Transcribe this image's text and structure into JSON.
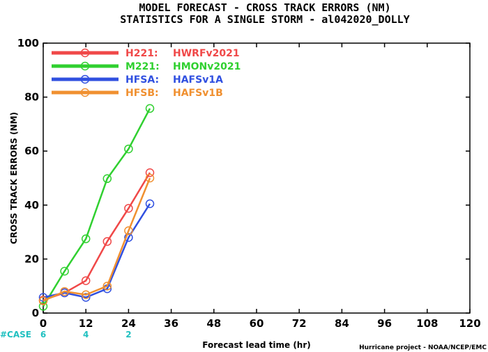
{
  "title_line1": "MODEL FORECAST - CROSS TRACK ERRORS (NM)",
  "title_line2": "STATISTICS FOR A SINGLE STORM - al042020_DOLLY",
  "credit": "Hurricane project - NOAA/NCEP/EMC",
  "case_label": "#CASE",
  "case_color": "#20c0c0",
  "chart_data": {
    "type": "line",
    "xlabel": "Forecast lead time (hr)",
    "ylabel": "CROSS TRACK ERRORS (NM)",
    "xlim": [
      0,
      120
    ],
    "ylim": [
      0,
      100
    ],
    "x_ticks": [
      "0",
      "12",
      "24",
      "36",
      "48",
      "60",
      "72",
      "84",
      "96",
      "108",
      "120"
    ],
    "y_ticks": [
      "0",
      "20",
      "40",
      "60",
      "80",
      "100"
    ],
    "x": [
      0,
      6,
      12,
      18,
      24,
      30
    ],
    "series": [
      {
        "code": "H221:",
        "name": "HWRFv2021",
        "color": "#f04848",
        "values": [
          4.8,
          7.5,
          12,
          26.5,
          38.8,
          52
        ]
      },
      {
        "code": "M221:",
        "name": "HMONv2021",
        "color": "#30d030",
        "values": [
          2.5,
          15.5,
          27.5,
          49.8,
          60.8,
          75.8
        ]
      },
      {
        "code": "HFSA:",
        "name": "HAFSv1A",
        "color": "#3050e0",
        "values": [
          5.8,
          7.5,
          5.8,
          9,
          28,
          40.5
        ]
      },
      {
        "code": "HFSB:",
        "name": "HAFSv1B",
        "color": "#f09030",
        "values": [
          4.5,
          8,
          6.8,
          10,
          30.5,
          50
        ]
      }
    ],
    "case_counts": [
      {
        "x": 0,
        "label": "6"
      },
      {
        "x": 12,
        "label": "4"
      },
      {
        "x": 24,
        "label": "2"
      }
    ],
    "grid": false,
    "legend_position": "top-left"
  }
}
